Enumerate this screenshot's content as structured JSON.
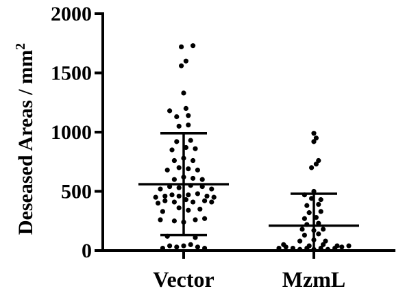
{
  "chart_data": {
    "type": "scatter",
    "subtype": "dot-plot-with-mean-sd",
    "ylabel": "Deseased Areas / mm",
    "ylabel_superscript": "2",
    "ylim": [
      0,
      2000
    ],
    "yticks": [
      0,
      500,
      1000,
      1500,
      2000
    ],
    "ytick_labels": [
      "0",
      "500",
      "1000",
      "1500",
      "2000"
    ],
    "categories": [
      "Vector",
      "MzmL"
    ],
    "grid": false,
    "legend": "none",
    "colors": {
      "points": "#000000",
      "axes": "#000000",
      "background": "#ffffff"
    },
    "groups": [
      {
        "name": "Vector",
        "mean": 560,
        "sd_low": 130,
        "sd_high": 990,
        "points": [
          [
            -0.45,
            20
          ],
          [
            -0.3,
            40
          ],
          [
            -0.15,
            30
          ],
          [
            0.0,
            40
          ],
          [
            0.15,
            50
          ],
          [
            0.3,
            30
          ],
          [
            0.45,
            20
          ],
          [
            -0.35,
            120
          ],
          [
            0.25,
            110
          ],
          [
            -0.5,
            260
          ],
          [
            -0.2,
            250
          ],
          [
            0.0,
            240
          ],
          [
            0.25,
            260
          ],
          [
            0.45,
            270
          ],
          [
            -0.45,
            330
          ],
          [
            -0.1,
            360
          ],
          [
            0.1,
            340
          ],
          [
            0.35,
            350
          ],
          [
            -0.55,
            400
          ],
          [
            -0.4,
            420
          ],
          [
            -0.2,
            410
          ],
          [
            0.05,
            430
          ],
          [
            0.2,
            410
          ],
          [
            0.45,
            420
          ],
          [
            0.6,
            410
          ],
          [
            -0.6,
            450
          ],
          [
            -0.4,
            460
          ],
          [
            -0.25,
            470
          ],
          [
            -0.1,
            460
          ],
          [
            0.1,
            470
          ],
          [
            0.3,
            480
          ],
          [
            0.5,
            460
          ],
          [
            0.65,
            450
          ],
          [
            -0.5,
            520
          ],
          [
            -0.3,
            540
          ],
          [
            -0.1,
            530
          ],
          [
            0.15,
            550
          ],
          [
            0.4,
            540
          ],
          [
            0.6,
            520
          ],
          [
            -0.2,
            600
          ],
          [
            0.0,
            620
          ],
          [
            0.2,
            610
          ],
          [
            0.4,
            600
          ],
          [
            -0.35,
            680
          ],
          [
            -0.1,
            700
          ],
          [
            0.1,
            690
          ],
          [
            0.3,
            680
          ],
          [
            -0.2,
            760
          ],
          [
            0.0,
            780
          ],
          [
            0.2,
            760
          ],
          [
            -0.25,
            850
          ],
          [
            0.05,
            870
          ],
          [
            0.25,
            860
          ],
          [
            -0.15,
            920
          ],
          [
            0.15,
            930
          ],
          [
            -0.1,
            1050
          ],
          [
            0.1,
            1060
          ],
          [
            -0.15,
            1130
          ],
          [
            0.1,
            1140
          ],
          [
            -0.3,
            1180
          ],
          [
            0.05,
            1200
          ],
          [
            0.0,
            1330
          ],
          [
            -0.05,
            1560
          ],
          [
            0.05,
            1600
          ],
          [
            -0.05,
            1720
          ],
          [
            0.2,
            1730
          ]
        ]
      },
      {
        "name": "MzmL",
        "mean": 210,
        "sd_low": 0,
        "sd_high": 480,
        "points": [
          [
            -0.75,
            20
          ],
          [
            -0.6,
            30
          ],
          [
            -0.45,
            20
          ],
          [
            -0.3,
            10
          ],
          [
            -0.15,
            20
          ],
          [
            0.0,
            10
          ],
          [
            0.15,
            20
          ],
          [
            0.3,
            10
          ],
          [
            0.45,
            20
          ],
          [
            0.6,
            30
          ],
          [
            0.75,
            40
          ],
          [
            -0.65,
            50
          ],
          [
            -0.1,
            40
          ],
          [
            0.2,
            50
          ],
          [
            0.5,
            40
          ],
          [
            -0.3,
            80
          ],
          [
            0.0,
            90
          ],
          [
            0.25,
            80
          ],
          [
            -0.2,
            130
          ],
          [
            0.1,
            140
          ],
          [
            -0.25,
            180
          ],
          [
            0.0,
            170
          ],
          [
            0.2,
            180
          ],
          [
            -0.15,
            220
          ],
          [
            0.1,
            230
          ],
          [
            -0.2,
            270
          ],
          [
            0.05,
            280
          ],
          [
            -0.1,
            320
          ],
          [
            0.15,
            330
          ],
          [
            -0.15,
            380
          ],
          [
            0.1,
            390
          ],
          [
            -0.05,
            440
          ],
          [
            0.15,
            430
          ],
          [
            0.0,
            500
          ],
          [
            -0.2,
            470
          ],
          [
            -0.05,
            700
          ],
          [
            0.05,
            730
          ],
          [
            0.1,
            760
          ],
          [
            0.0,
            920
          ],
          [
            0.05,
            950
          ],
          [
            0.0,
            990
          ]
        ]
      }
    ]
  }
}
